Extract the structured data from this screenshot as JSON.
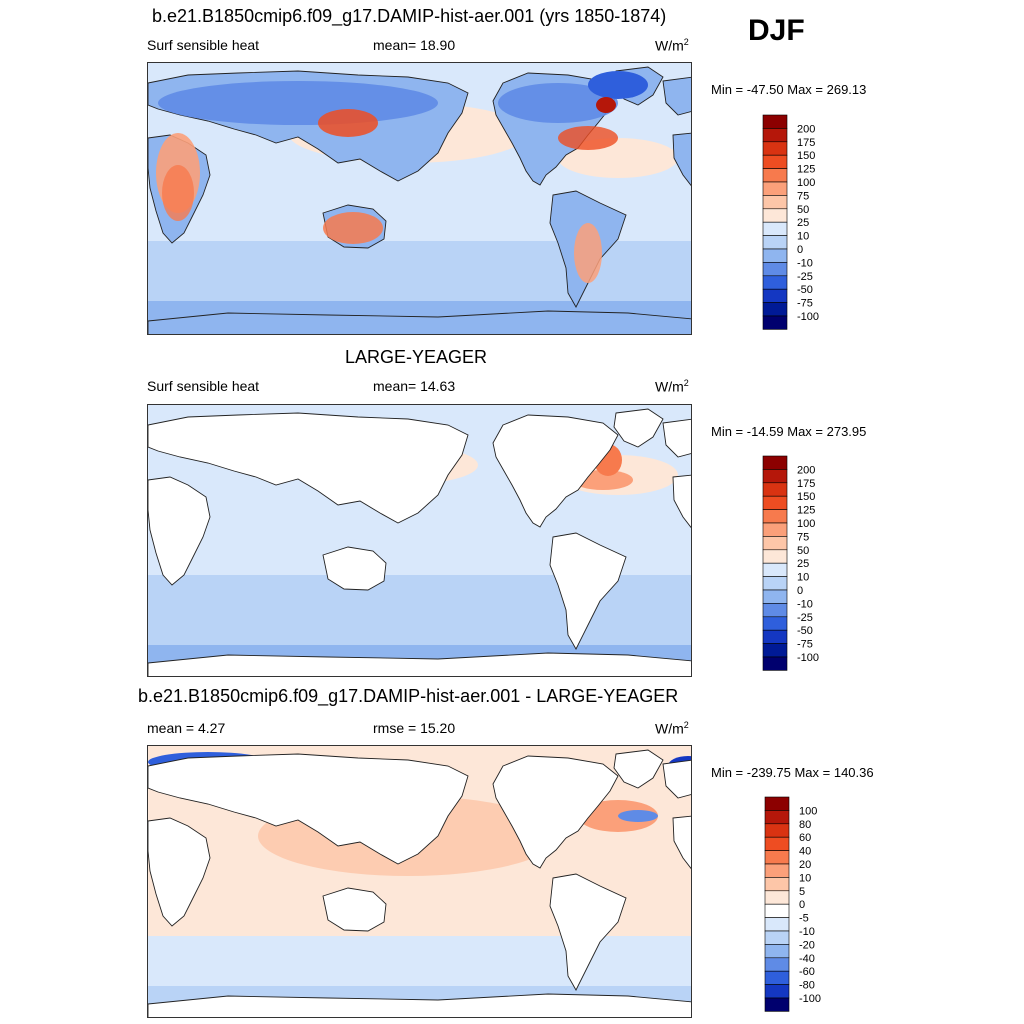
{
  "season": "DJF",
  "panels": [
    {
      "title": "b.e21.B1850cmip6.f09_g17.DAMIP-hist-aer.001 (yrs 1850-1874)",
      "left_label": "Surf sensible heat",
      "mid_label": "mean=  18.90",
      "units": "W/m",
      "units_sup": "2",
      "minmax": "Min = -47.50 Max = 269.13",
      "colorbar": {
        "labels": [
          "200",
          "175",
          "150",
          "125",
          "100",
          "75",
          "50",
          "25",
          "10",
          "0",
          "-10",
          "-25",
          "-50",
          "-75",
          "-100"
        ],
        "colors": [
          "#8c0000",
          "#b5170a",
          "#d93312",
          "#ee4d22",
          "#f77a4d",
          "#fba07a",
          "#fdc6a8",
          "#fde7d8",
          "#d9e8fb",
          "#b9d3f6",
          "#8fb5ef",
          "#5f8be6",
          "#2f5fdc",
          "#1437c2",
          "#001a96",
          "#00006e"
        ]
      },
      "map_style": "full"
    },
    {
      "title": "LARGE-YEAGER",
      "left_label": "Surf sensible heat",
      "mid_label": "mean=  14.63",
      "units": "W/m",
      "units_sup": "2",
      "minmax": "Min = -14.59 Max = 273.95",
      "colorbar": {
        "labels": [
          "200",
          "175",
          "150",
          "125",
          "100",
          "75",
          "50",
          "25",
          "10",
          "0",
          "-10",
          "-25",
          "-50",
          "-75",
          "-100"
        ],
        "colors": [
          "#8c0000",
          "#b5170a",
          "#d93312",
          "#ee4d22",
          "#f77a4d",
          "#fba07a",
          "#fdc6a8",
          "#fde7d8",
          "#d9e8fb",
          "#b9d3f6",
          "#8fb5ef",
          "#5f8be6",
          "#2f5fdc",
          "#1437c2",
          "#001a96",
          "#00006e"
        ]
      },
      "map_style": "ocean"
    },
    {
      "title": "b.e21.B1850cmip6.f09_g17.DAMIP-hist-aer.001 - LARGE-YEAGER",
      "left_label": "mean =   4.27",
      "mid_label": "rmse =  15.20",
      "units": "W/m",
      "units_sup": "2",
      "minmax": "Min = -239.75 Max = 140.36",
      "colorbar": {
        "labels": [
          "100",
          "80",
          "60",
          "40",
          "20",
          "10",
          "5",
          "0",
          "-5",
          "-10",
          "-20",
          "-40",
          "-60",
          "-80",
          "-100"
        ],
        "colors": [
          "#8c0000",
          "#b5170a",
          "#d93312",
          "#ee4d22",
          "#f77a4d",
          "#fba07a",
          "#fdc6a8",
          "#fde7d8",
          "#ffffff",
          "#d9e8fb",
          "#b9d3f6",
          "#8fb5ef",
          "#5f8be6",
          "#2f5fdc",
          "#1437c2",
          "#00006e"
        ]
      },
      "map_style": "diff"
    }
  ]
}
